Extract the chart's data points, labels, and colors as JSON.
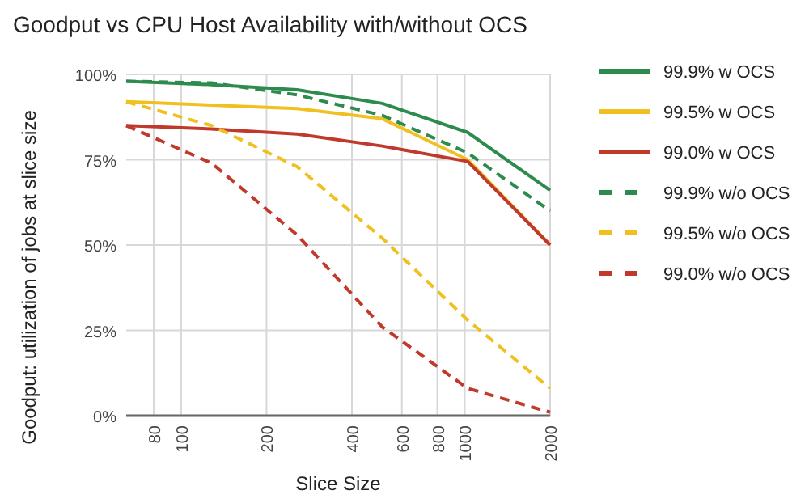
{
  "chart_data": {
    "type": "line",
    "title": "Goodput vs CPU Host Availability with/without OCS",
    "xlabel": "Slice Size",
    "ylabel": "Goodput: utilization of jobs at slice size",
    "log": "x",
    "xlim": [
      64,
      2000
    ],
    "xticks": [
      80,
      100,
      200,
      400,
      600,
      800,
      1000,
      2000
    ],
    "ylim": [
      0,
      100
    ],
    "yticks": [
      {
        "value": 0,
        "label": "0%"
      },
      {
        "value": 25,
        "label": "25%"
      },
      {
        "value": 50,
        "label": "50%"
      },
      {
        "value": 75,
        "label": "75%"
      },
      {
        "value": 100,
        "label": "100%"
      }
    ],
    "grid": true,
    "legend": "right",
    "marker": "none",
    "x": [
      64,
      128,
      256,
      512,
      1024,
      2000
    ],
    "series": [
      {
        "name": "99.9% w OCS",
        "color": "#2e8b4e",
        "line_style": "solid",
        "values": [
          98,
          97,
          95.5,
          91.5,
          83,
          66
        ]
      },
      {
        "name": "99.5% w OCS",
        "color": "#f0c020",
        "line_style": "solid",
        "values": [
          92,
          91,
          90,
          87,
          75,
          50
        ]
      },
      {
        "name": "99.0% w OCS",
        "color": "#c0392b",
        "line_style": "solid",
        "values": [
          85,
          84,
          82.5,
          79,
          74.5,
          50
        ]
      },
      {
        "name": "99.9% w/o OCS",
        "color": "#2e8b4e",
        "line_style": "dashed",
        "values": [
          98,
          97.5,
          94,
          88,
          77,
          60
        ]
      },
      {
        "name": "99.5% w/o OCS",
        "color": "#f0c020",
        "line_style": "dashed",
        "values": [
          92,
          85,
          73,
          52,
          28,
          8
        ]
      },
      {
        "name": "99.0% w/o OCS",
        "color": "#c0392b",
        "line_style": "dashed",
        "values": [
          85,
          74,
          53,
          26,
          8,
          1
        ]
      }
    ]
  }
}
